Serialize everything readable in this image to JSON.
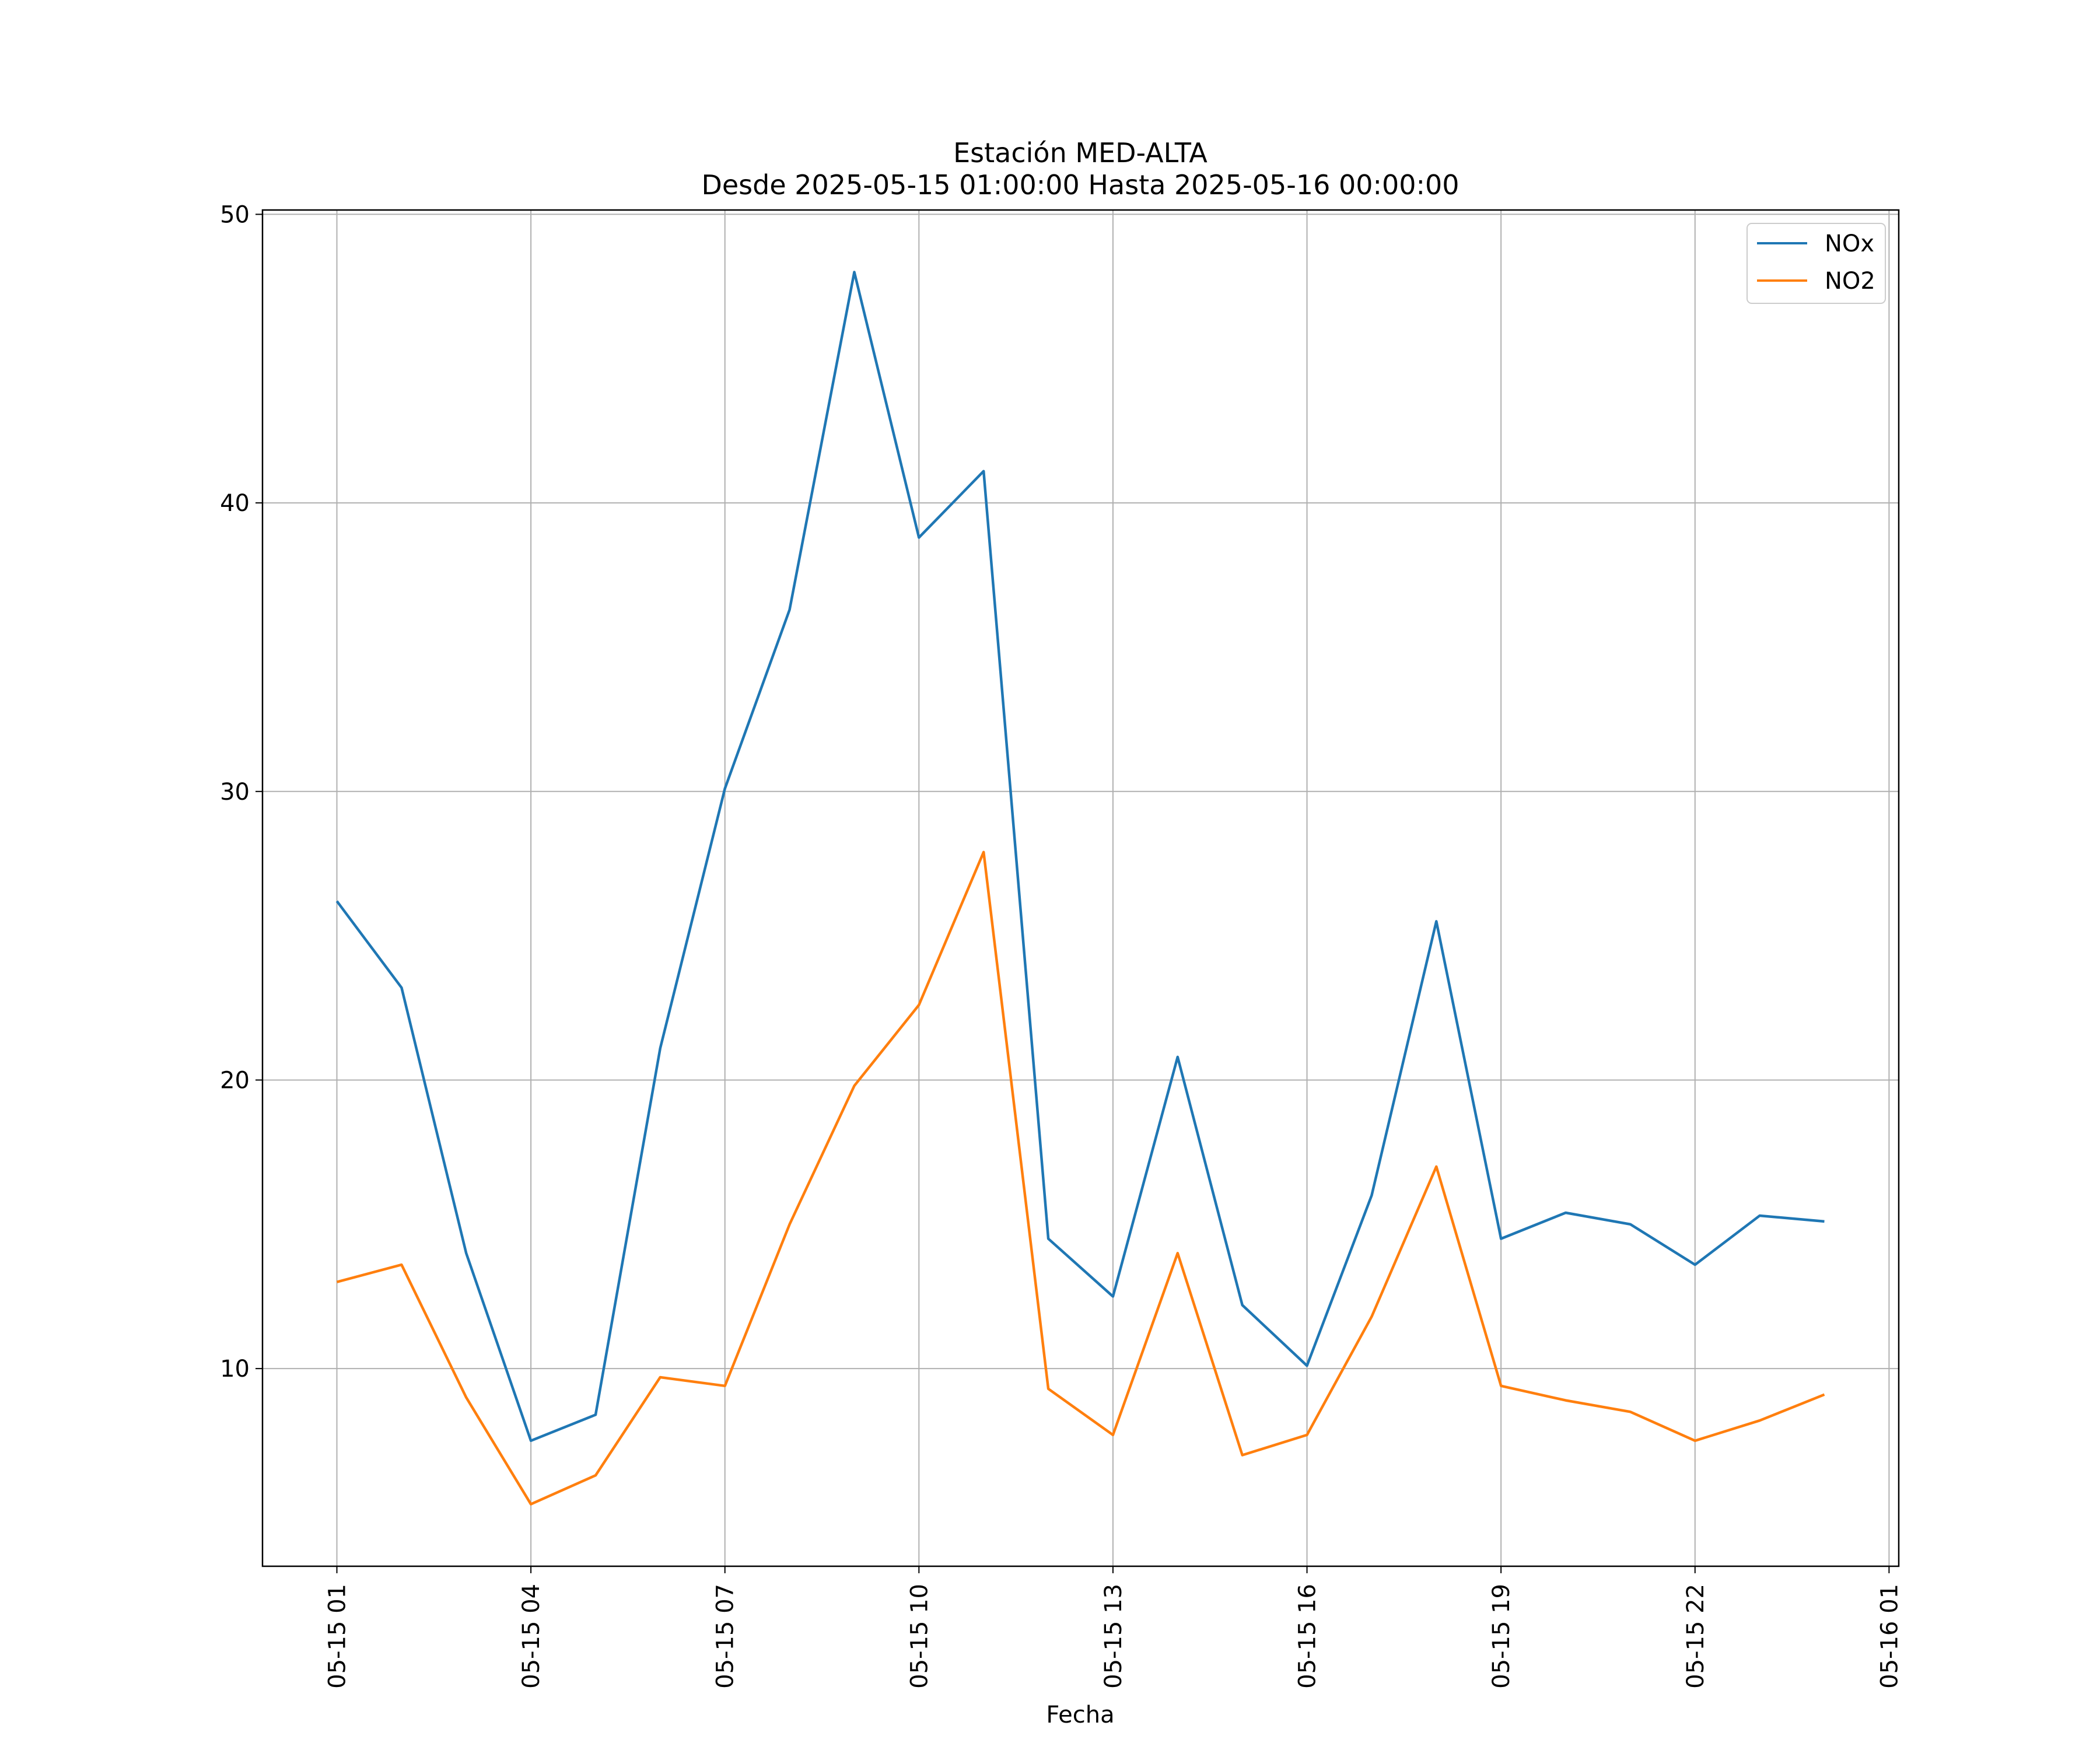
{
  "chart_data": {
    "type": "line",
    "title": "Estación MED-ALTA",
    "subtitle": "Desde 2025-05-15 01:00:00 Hasta 2025-05-16 00:00:00",
    "xlabel": "Fecha",
    "ylabel": "",
    "x": [
      "2025-05-15 01:00",
      "2025-05-15 02:00",
      "2025-05-15 03:00",
      "2025-05-15 04:00",
      "2025-05-15 05:00",
      "2025-05-15 06:00",
      "2025-05-15 07:00",
      "2025-05-15 08:00",
      "2025-05-15 09:00",
      "2025-05-15 10:00",
      "2025-05-15 11:00",
      "2025-05-15 12:00",
      "2025-05-15 13:00",
      "2025-05-15 14:00",
      "2025-05-15 15:00",
      "2025-05-15 16:00",
      "2025-05-15 17:00",
      "2025-05-15 18:00",
      "2025-05-15 19:00",
      "2025-05-15 20:00",
      "2025-05-15 21:00",
      "2025-05-15 22:00",
      "2025-05-15 23:00",
      "2025-05-16 00:00"
    ],
    "series": [
      {
        "name": "NOx",
        "color": "#1f77b4",
        "values": [
          26.2,
          23.2,
          14.0,
          7.5,
          8.4,
          21.1,
          30.1,
          36.3,
          48.0,
          38.8,
          41.1,
          14.5,
          12.5,
          20.8,
          12.2,
          10.1,
          16.0,
          25.5,
          14.5,
          15.4,
          15.0,
          13.6,
          15.3,
          15.1
        ]
      },
      {
        "name": "NO2",
        "color": "#ff7f0e",
        "values": [
          13.0,
          13.6,
          9.0,
          5.3,
          6.3,
          9.7,
          9.4,
          15.0,
          19.8,
          22.6,
          27.9,
          9.3,
          7.7,
          14.0,
          7.0,
          7.7,
          11.8,
          17.0,
          9.4,
          8.9,
          8.5,
          7.5,
          8.2,
          9.1
        ]
      }
    ],
    "x_ticks": [
      "05-15 01",
      "05-15 04",
      "05-15 07",
      "05-15 10",
      "05-15 13",
      "05-15 16",
      "05-15 19",
      "05-15 22",
      "05-16 01"
    ],
    "x_tick_positions": [
      "2025-05-15 01:00",
      "2025-05-15 04:00",
      "2025-05-15 07:00",
      "2025-05-15 10:00",
      "2025-05-15 13:00",
      "2025-05-15 16:00",
      "2025-05-15 19:00",
      "2025-05-15 22:00",
      "2025-05-16 01:00"
    ],
    "xlim": [
      "2025-05-14 23:51",
      "2025-05-16 01:09"
    ],
    "y_ticks": [
      10,
      20,
      30,
      40,
      50
    ],
    "ylim": [
      3.15,
      50.15
    ],
    "grid": true,
    "legend_position": "top-right"
  }
}
